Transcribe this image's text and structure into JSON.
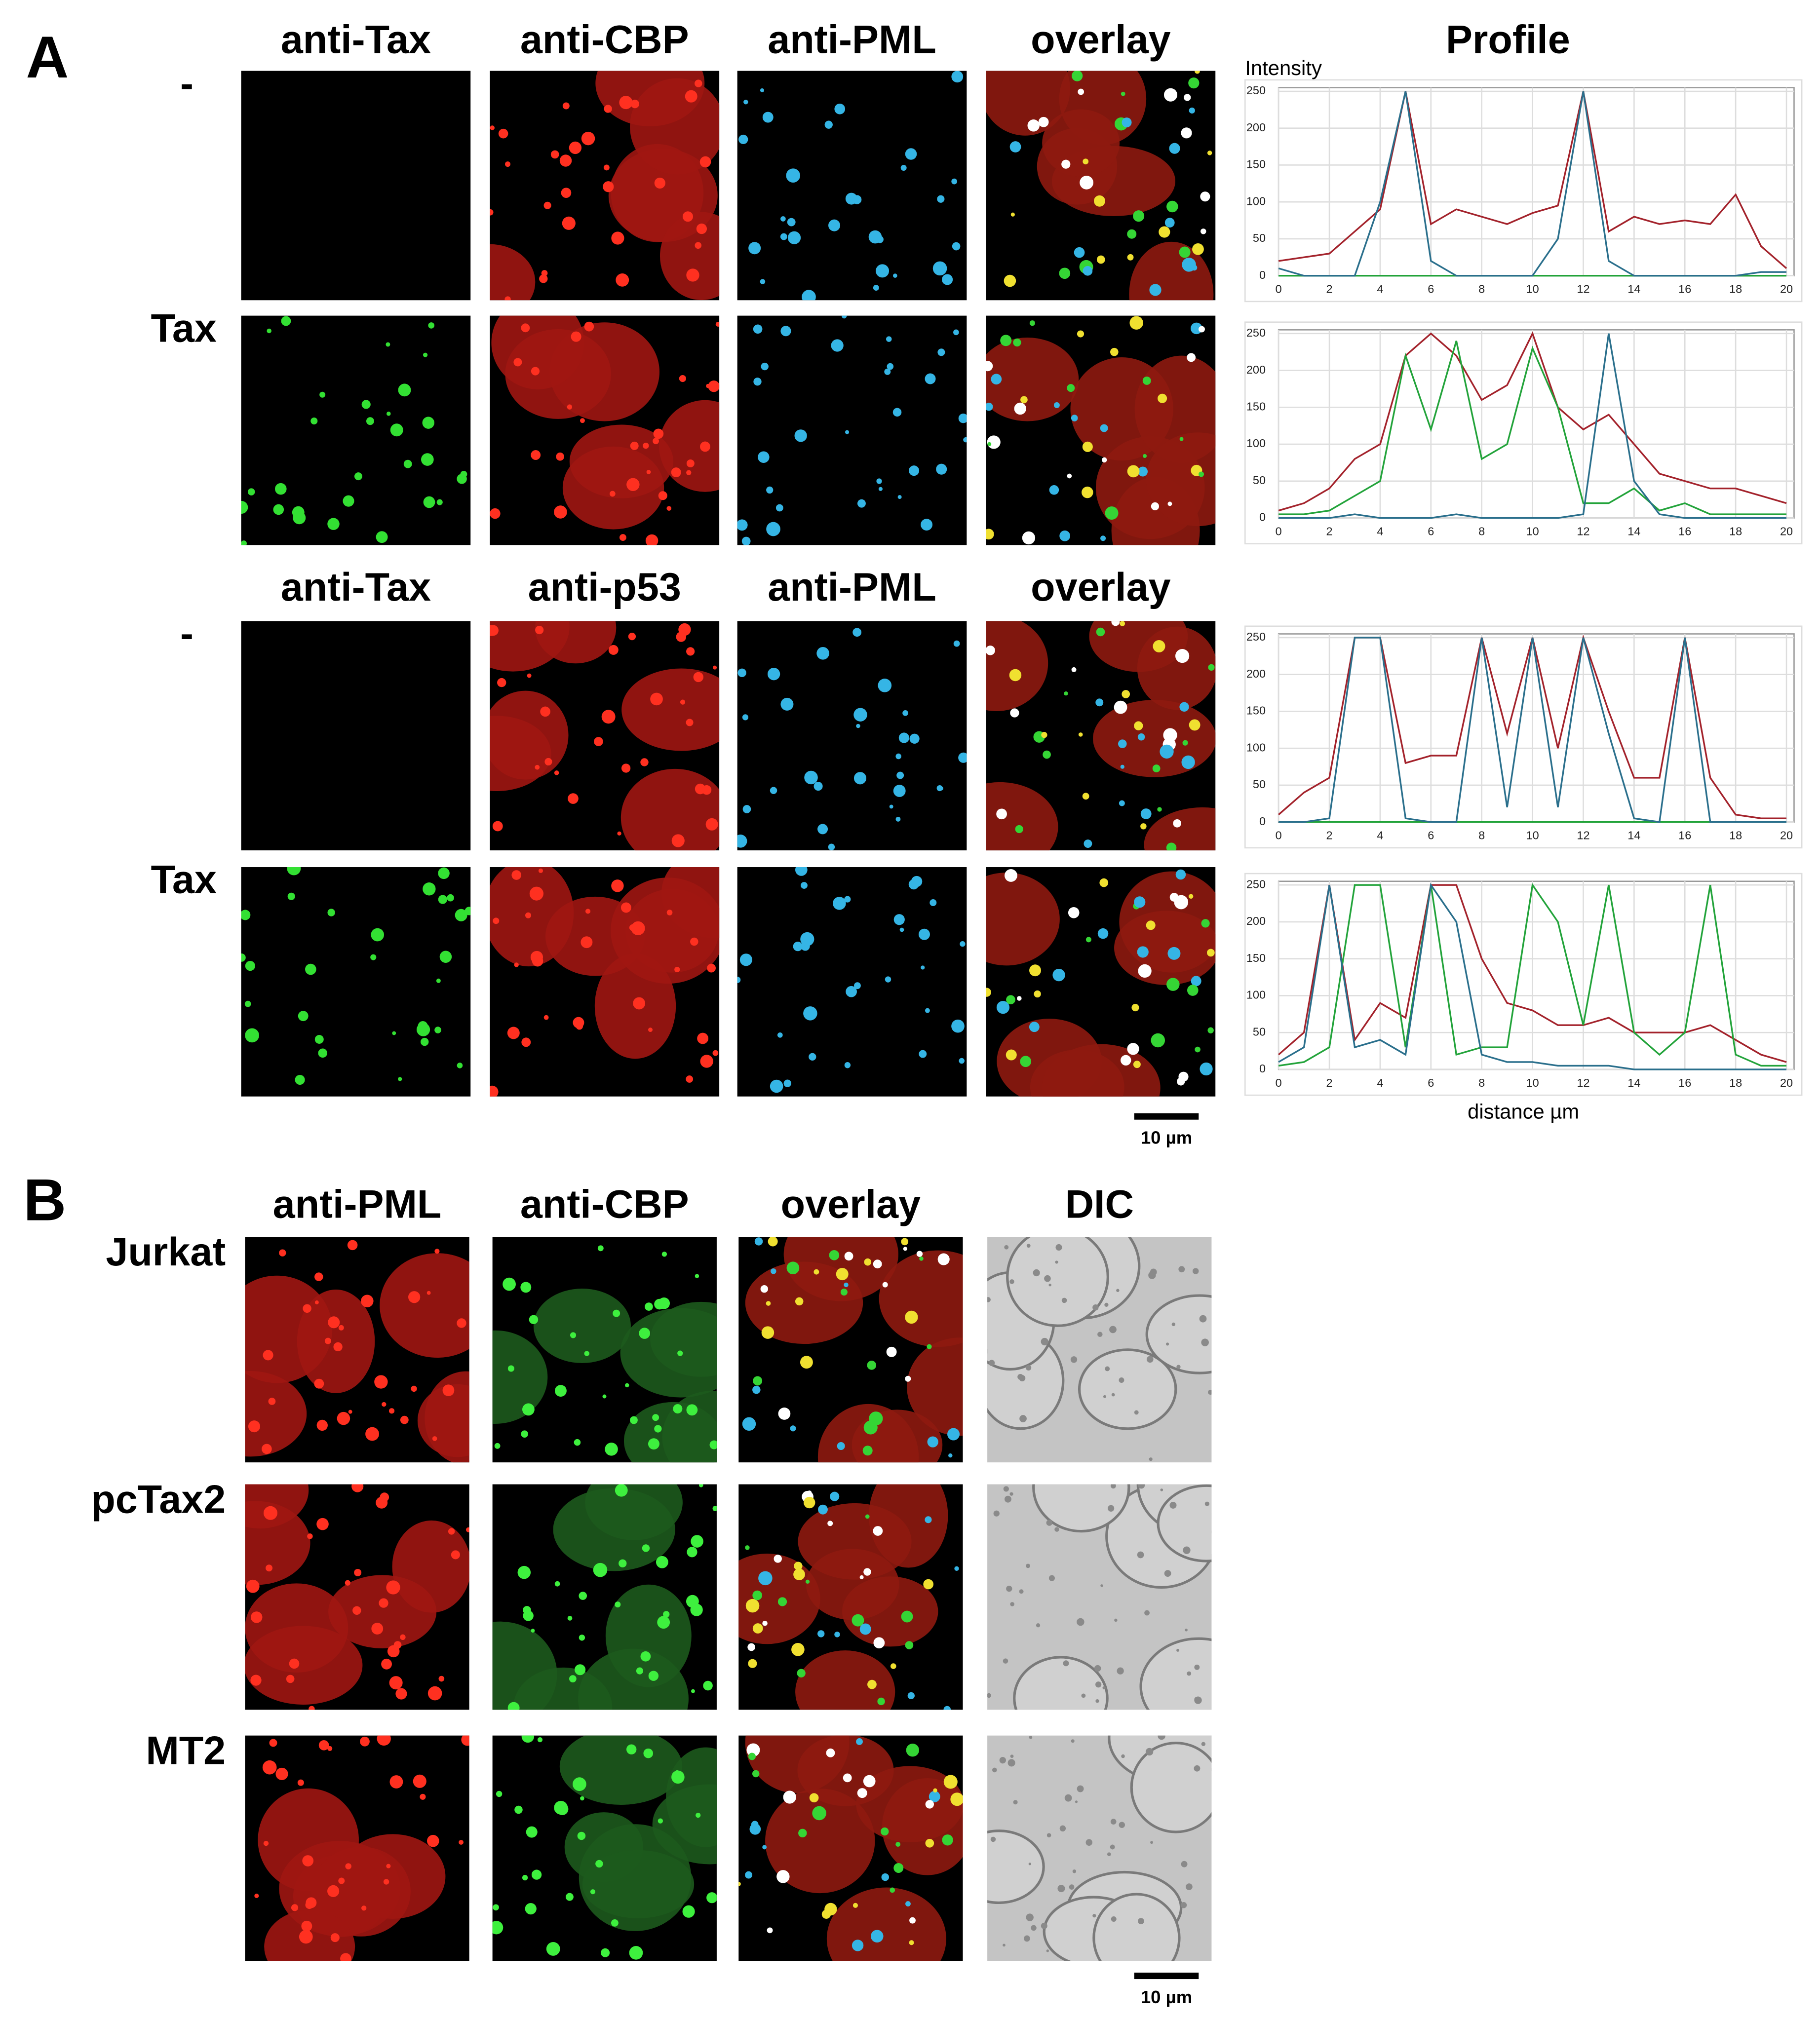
{
  "panel_a": {
    "label": "A",
    "blocks": [
      {
        "headers": [
          "anti-Tax",
          "anti-CBP",
          "anti-PML",
          "overlay"
        ],
        "rows": [
          {
            "label": "-"
          },
          {
            "label": "Tax"
          }
        ]
      },
      {
        "headers": [
          "anti-Tax",
          "anti-p53",
          "anti-PML",
          "overlay"
        ],
        "rows": [
          {
            "label": "-"
          },
          {
            "label": "Tax"
          }
        ]
      }
    ],
    "profile_title": "Profile",
    "scale_bar": "10 µm"
  },
  "chart_data": [
    {
      "type": "line",
      "ylabel": "Intensity",
      "x": [
        0,
        1,
        2,
        3,
        4,
        5,
        6,
        7,
        8,
        9,
        10,
        11,
        12,
        13,
        14,
        15,
        16,
        17,
        18,
        19,
        20
      ],
      "series": [
        {
          "name": "red",
          "color": "#a3222b",
          "values": [
            20,
            25,
            30,
            60,
            90,
            250,
            70,
            90,
            80,
            70,
            85,
            95,
            250,
            60,
            80,
            70,
            75,
            70,
            110,
            40,
            10
          ]
        },
        {
          "name": "green",
          "color": "#22a33a",
          "values": [
            0,
            0,
            0,
            0,
            0,
            0,
            0,
            0,
            0,
            0,
            0,
            0,
            0,
            0,
            0,
            0,
            0,
            0,
            0,
            0,
            0
          ]
        },
        {
          "name": "blue",
          "color": "#2a6f8c",
          "values": [
            10,
            0,
            0,
            0,
            100,
            250,
            20,
            0,
            0,
            0,
            0,
            50,
            250,
            20,
            0,
            0,
            0,
            0,
            0,
            5,
            5
          ]
        }
      ],
      "xlim": [
        0,
        20.3
      ],
      "ylim": [
        0,
        255
      ],
      "xticks": [
        0,
        2,
        4,
        6,
        8,
        10,
        12,
        14,
        16,
        18,
        20
      ],
      "yticks": [
        0,
        50,
        100,
        150,
        200,
        250
      ],
      "grid": true
    },
    {
      "type": "line",
      "x": [
        0,
        1,
        2,
        3,
        4,
        5,
        6,
        7,
        8,
        9,
        10,
        11,
        12,
        13,
        14,
        15,
        16,
        17,
        18,
        19,
        20
      ],
      "series": [
        {
          "name": "red",
          "color": "#a3222b",
          "values": [
            10,
            20,
            40,
            80,
            100,
            220,
            250,
            220,
            160,
            180,
            250,
            150,
            120,
            140,
            100,
            60,
            50,
            40,
            40,
            30,
            20
          ]
        },
        {
          "name": "green",
          "color": "#22a33a",
          "values": [
            5,
            5,
            10,
            30,
            50,
            220,
            120,
            240,
            80,
            100,
            230,
            150,
            20,
            20,
            40,
            10,
            20,
            5,
            5,
            5,
            5
          ]
        },
        {
          "name": "blue",
          "color": "#2a6f8c",
          "values": [
            0,
            0,
            0,
            5,
            0,
            0,
            0,
            5,
            0,
            0,
            0,
            0,
            5,
            250,
            50,
            5,
            0,
            0,
            0,
            0,
            0
          ]
        }
      ],
      "xlim": [
        0,
        20.3
      ],
      "ylim": [
        0,
        255
      ],
      "xticks": [
        0,
        2,
        4,
        6,
        8,
        10,
        12,
        14,
        16,
        18,
        20
      ],
      "yticks": [
        0,
        50,
        100,
        150,
        200,
        250
      ],
      "grid": true
    },
    {
      "type": "line",
      "x": [
        0,
        1,
        2,
        3,
        4,
        5,
        6,
        7,
        8,
        9,
        10,
        11,
        12,
        13,
        14,
        15,
        16,
        17,
        18,
        19,
        20
      ],
      "series": [
        {
          "name": "red",
          "color": "#a3222b",
          "values": [
            10,
            40,
            60,
            250,
            250,
            80,
            90,
            90,
            250,
            120,
            250,
            100,
            250,
            150,
            60,
            60,
            250,
            60,
            10,
            5,
            5
          ]
        },
        {
          "name": "green",
          "color": "#22a33a",
          "values": [
            0,
            0,
            0,
            0,
            0,
            0,
            0,
            0,
            0,
            0,
            0,
            0,
            0,
            0,
            0,
            0,
            0,
            0,
            0,
            0,
            0
          ]
        },
        {
          "name": "blue",
          "color": "#2a6f8c",
          "values": [
            0,
            0,
            5,
            250,
            250,
            5,
            0,
            0,
            250,
            20,
            250,
            20,
            250,
            120,
            5,
            0,
            250,
            0,
            0,
            0,
            0
          ]
        }
      ],
      "xlim": [
        0,
        20.3
      ],
      "ylim": [
        0,
        255
      ],
      "xticks": [
        0,
        2,
        4,
        6,
        8,
        10,
        12,
        14,
        16,
        18,
        20
      ],
      "yticks": [
        0,
        50,
        100,
        150,
        200,
        250
      ],
      "grid": true
    },
    {
      "type": "line",
      "xlabel": "distance µm",
      "x": [
        0,
        1,
        2,
        3,
        4,
        5,
        6,
        7,
        8,
        9,
        10,
        11,
        12,
        13,
        14,
        15,
        16,
        17,
        18,
        19,
        20
      ],
      "series": [
        {
          "name": "red",
          "color": "#a3222b",
          "values": [
            20,
            50,
            250,
            40,
            90,
            70,
            250,
            250,
            150,
            90,
            80,
            60,
            60,
            70,
            50,
            50,
            50,
            60,
            40,
            20,
            10
          ]
        },
        {
          "name": "green",
          "color": "#22a33a",
          "values": [
            5,
            10,
            30,
            250,
            250,
            30,
            250,
            20,
            30,
            30,
            250,
            200,
            60,
            250,
            50,
            20,
            50,
            250,
            20,
            5,
            5
          ]
        },
        {
          "name": "blue",
          "color": "#2a6f8c",
          "values": [
            10,
            30,
            250,
            30,
            40,
            20,
            250,
            200,
            20,
            10,
            10,
            5,
            5,
            5,
            0,
            0,
            0,
            0,
            0,
            0,
            0
          ]
        }
      ],
      "xlim": [
        0,
        20.3
      ],
      "ylim": [
        0,
        255
      ],
      "xticks": [
        0,
        2,
        4,
        6,
        8,
        10,
        12,
        14,
        16,
        18,
        20
      ],
      "yticks": [
        0,
        50,
        100,
        150,
        200,
        250
      ],
      "grid": true
    }
  ],
  "panel_b": {
    "label": "B",
    "headers": [
      "anti-PML",
      "anti-CBP",
      "overlay",
      "DIC"
    ],
    "rows": [
      {
        "label": "Jurkat"
      },
      {
        "label": "pcTax2"
      },
      {
        "label": "MT2"
      }
    ],
    "scale_bar": "10 µm"
  }
}
